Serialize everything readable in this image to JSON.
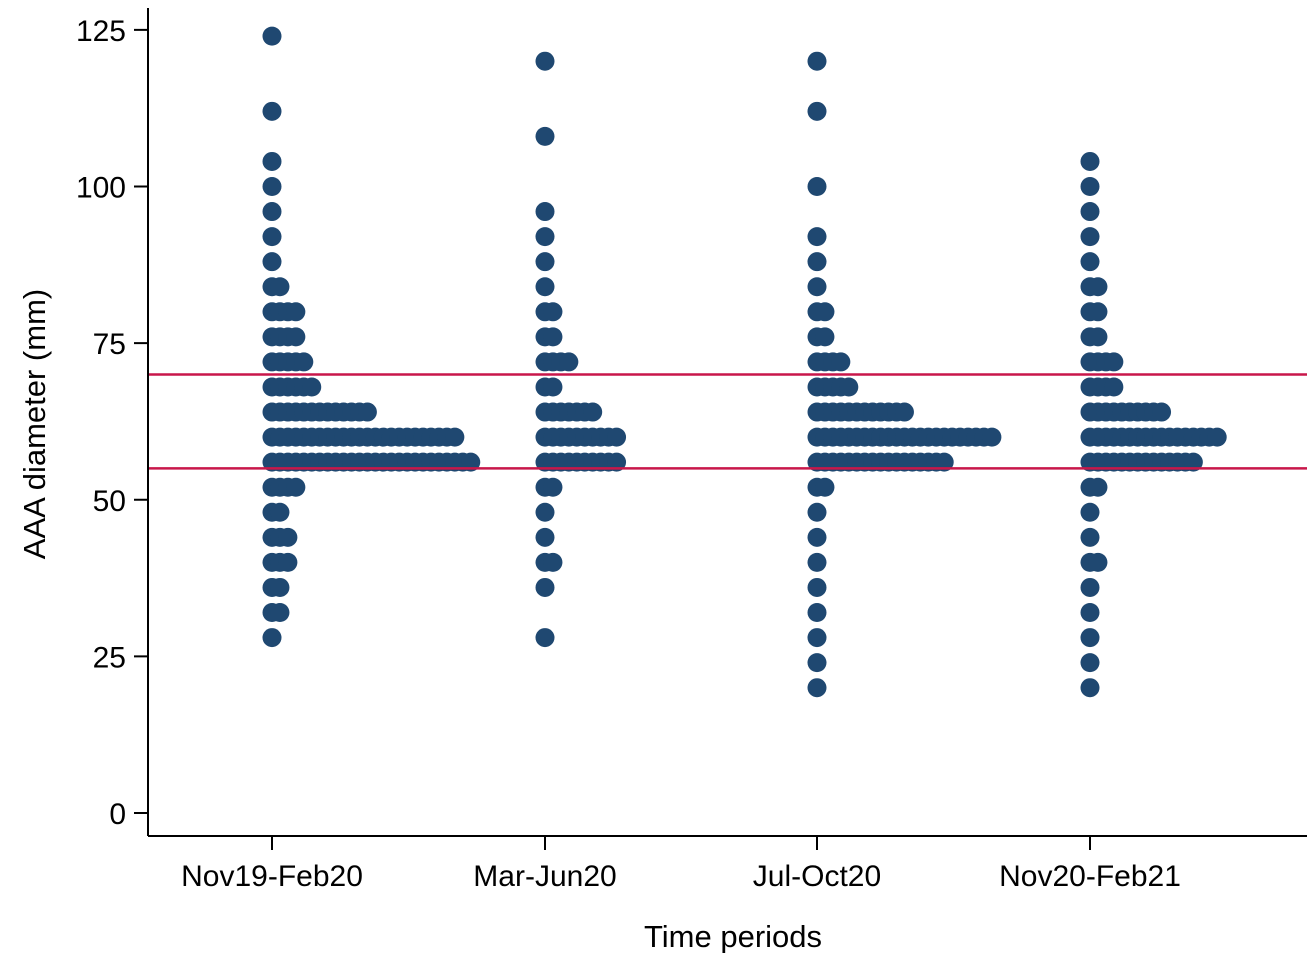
{
  "chart_data": {
    "type": "scatter",
    "subtype": "dot-plot",
    "title": "",
    "xlabel": "Time periods",
    "ylabel": "AAA diameter (mm)",
    "ylim": [
      0,
      125
    ],
    "yticks": [
      0,
      25,
      50,
      75,
      100,
      125
    ],
    "categories": [
      "Nov19-Feb20",
      "Mar-Jun20",
      "Jul-Oct20",
      "Nov20-Feb21"
    ],
    "grid": false,
    "legend": "none",
    "colors": {
      "points": "#1f4871",
      "reference_lines": "#c8174a",
      "axis": "#000000"
    },
    "reference_lines": [
      {
        "axis": "y",
        "value": 70
      },
      {
        "axis": "y",
        "value": 55
      }
    ],
    "series": [
      {
        "category": "Nov19-Feb20",
        "bins": [
          {
            "value": 124,
            "count": 1
          },
          {
            "value": 112,
            "count": 1
          },
          {
            "value": 104,
            "count": 1
          },
          {
            "value": 100,
            "count": 1
          },
          {
            "value": 96,
            "count": 1
          },
          {
            "value": 92,
            "count": 1
          },
          {
            "value": 88,
            "count": 1
          },
          {
            "value": 84,
            "count": 2
          },
          {
            "value": 80,
            "count": 4
          },
          {
            "value": 76,
            "count": 4
          },
          {
            "value": 72,
            "count": 5
          },
          {
            "value": 68,
            "count": 6
          },
          {
            "value": 64,
            "count": 13
          },
          {
            "value": 60,
            "count": 24
          },
          {
            "value": 56,
            "count": 26
          },
          {
            "value": 52,
            "count": 4
          },
          {
            "value": 48,
            "count": 2
          },
          {
            "value": 44,
            "count": 3
          },
          {
            "value": 40,
            "count": 3
          },
          {
            "value": 36,
            "count": 2
          },
          {
            "value": 32,
            "count": 2
          },
          {
            "value": 28,
            "count": 1
          }
        ]
      },
      {
        "category": "Mar-Jun20",
        "bins": [
          {
            "value": 120,
            "count": 1
          },
          {
            "value": 108,
            "count": 1
          },
          {
            "value": 96,
            "count": 1
          },
          {
            "value": 92,
            "count": 1
          },
          {
            "value": 88,
            "count": 1
          },
          {
            "value": 84,
            "count": 1
          },
          {
            "value": 80,
            "count": 2
          },
          {
            "value": 76,
            "count": 2
          },
          {
            "value": 72,
            "count": 4
          },
          {
            "value": 68,
            "count": 2
          },
          {
            "value": 64,
            "count": 7
          },
          {
            "value": 60,
            "count": 10
          },
          {
            "value": 56,
            "count": 10
          },
          {
            "value": 52,
            "count": 2
          },
          {
            "value": 48,
            "count": 1
          },
          {
            "value": 44,
            "count": 1
          },
          {
            "value": 40,
            "count": 2
          },
          {
            "value": 36,
            "count": 1
          },
          {
            "value": 28,
            "count": 1
          }
        ]
      },
      {
        "category": "Jul-Oct20",
        "bins": [
          {
            "value": 120,
            "count": 1
          },
          {
            "value": 112,
            "count": 1
          },
          {
            "value": 100,
            "count": 1
          },
          {
            "value": 92,
            "count": 1
          },
          {
            "value": 88,
            "count": 1
          },
          {
            "value": 84,
            "count": 1
          },
          {
            "value": 80,
            "count": 2
          },
          {
            "value": 76,
            "count": 2
          },
          {
            "value": 72,
            "count": 4
          },
          {
            "value": 68,
            "count": 5
          },
          {
            "value": 64,
            "count": 12
          },
          {
            "value": 60,
            "count": 23
          },
          {
            "value": 56,
            "count": 17
          },
          {
            "value": 52,
            "count": 2
          },
          {
            "value": 48,
            "count": 1
          },
          {
            "value": 44,
            "count": 1
          },
          {
            "value": 40,
            "count": 1
          },
          {
            "value": 36,
            "count": 1
          },
          {
            "value": 32,
            "count": 1
          },
          {
            "value": 28,
            "count": 1
          },
          {
            "value": 24,
            "count": 1
          },
          {
            "value": 20,
            "count": 1
          }
        ]
      },
      {
        "category": "Nov20-Feb21",
        "bins": [
          {
            "value": 104,
            "count": 1
          },
          {
            "value": 100,
            "count": 1
          },
          {
            "value": 96,
            "count": 1
          },
          {
            "value": 92,
            "count": 1
          },
          {
            "value": 88,
            "count": 1
          },
          {
            "value": 84,
            "count": 2
          },
          {
            "value": 80,
            "count": 2
          },
          {
            "value": 76,
            "count": 2
          },
          {
            "value": 72,
            "count": 4
          },
          {
            "value": 68,
            "count": 4
          },
          {
            "value": 64,
            "count": 10
          },
          {
            "value": 60,
            "count": 17
          },
          {
            "value": 56,
            "count": 14
          },
          {
            "value": 52,
            "count": 2
          },
          {
            "value": 48,
            "count": 1
          },
          {
            "value": 44,
            "count": 1
          },
          {
            "value": 40,
            "count": 2
          },
          {
            "value": 36,
            "count": 1
          },
          {
            "value": 32,
            "count": 1
          },
          {
            "value": 28,
            "count": 1
          },
          {
            "value": 24,
            "count": 1
          },
          {
            "value": 20,
            "count": 1
          }
        ]
      }
    ]
  }
}
